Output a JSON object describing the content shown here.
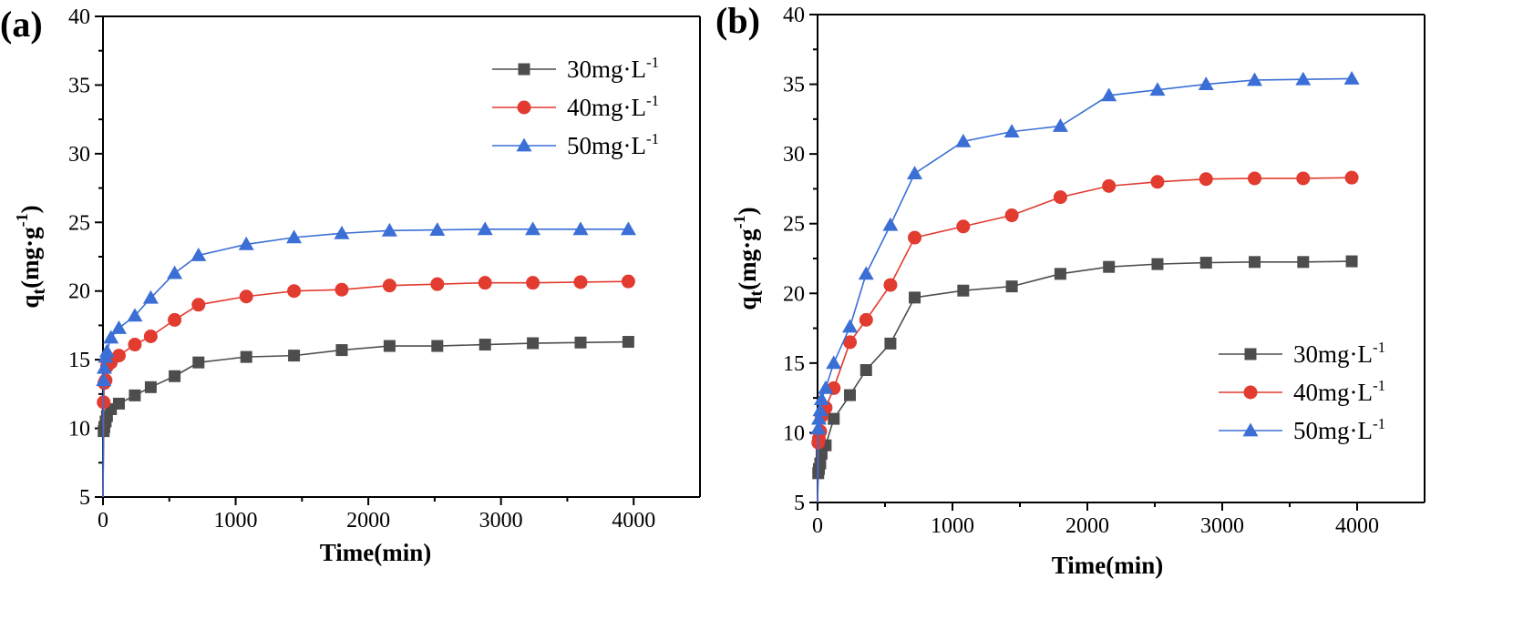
{
  "chart_data": [
    {
      "panel": "(a)",
      "type": "line",
      "xlabel": "Time(min)",
      "ylabel": "qt(mg·g-1)",
      "ylabel_parts": {
        "main": "q",
        "sub": "t",
        "unit_open": "(mg·g",
        "unit_sup": "-1",
        "unit_close": ")"
      },
      "xlim": [
        0,
        4500
      ],
      "ylim": [
        5,
        40
      ],
      "xticks": [
        0,
        1000,
        2000,
        3000,
        4000
      ],
      "yticks": [
        5,
        10,
        15,
        20,
        25,
        30,
        35,
        40
      ],
      "legend_position": "top-right",
      "series": [
        {
          "name": "30mg·L-1",
          "name_main": "30mg·L",
          "name_sup": "-1",
          "marker": "square",
          "color": "#4d4d4d",
          "x": [
            0,
            5,
            10,
            20,
            30,
            60,
            120,
            240,
            360,
            540,
            720,
            1080,
            1440,
            1800,
            2160,
            2520,
            2880,
            3240,
            3600,
            3960
          ],
          "y": [
            5,
            9.8,
            10.1,
            10.5,
            10.9,
            11.4,
            11.8,
            12.4,
            13.0,
            13.8,
            14.8,
            15.2,
            15.3,
            15.7,
            16.0,
            16.0,
            16.1,
            16.2,
            16.25,
            16.3
          ]
        },
        {
          "name": "40mg·L-1",
          "name_main": "40mg·L",
          "name_sup": "-1",
          "marker": "circle",
          "color": "#e23b2f",
          "x": [
            0,
            5,
            10,
            20,
            30,
            60,
            120,
            240,
            360,
            540,
            720,
            1080,
            1440,
            1800,
            2160,
            2520,
            2880,
            3240,
            3600,
            3960
          ],
          "y": [
            5,
            11.9,
            13.3,
            13.5,
            14.5,
            14.8,
            15.3,
            16.1,
            16.7,
            17.9,
            19.0,
            19.6,
            20.0,
            20.1,
            20.4,
            20.5,
            20.6,
            20.6,
            20.65,
            20.7
          ]
        },
        {
          "name": "50mg·L-1",
          "name_main": "50mg·L",
          "name_sup": "-1",
          "marker": "triangle",
          "color": "#3b6fd6",
          "x": [
            0,
            5,
            10,
            20,
            30,
            60,
            120,
            240,
            360,
            540,
            720,
            1080,
            1440,
            1800,
            2160,
            2520,
            2880,
            3240,
            3600,
            3960
          ],
          "y": [
            5,
            13.5,
            14.4,
            15.2,
            15.6,
            16.6,
            17.3,
            18.2,
            19.5,
            21.3,
            22.6,
            23.4,
            23.9,
            24.2,
            24.4,
            24.45,
            24.5,
            24.5,
            24.5,
            24.5
          ]
        }
      ]
    },
    {
      "panel": "(b)",
      "type": "line",
      "xlabel": "Time(min)",
      "ylabel": "qt(mg·g-1)",
      "ylabel_parts": {
        "main": "q",
        "sub": "t",
        "unit_open": "(mg·g",
        "unit_sup": "-1",
        "unit_close": ")"
      },
      "xlim": [
        0,
        4500
      ],
      "ylim": [
        5,
        40
      ],
      "xticks": [
        0,
        1000,
        2000,
        3000,
        4000
      ],
      "yticks": [
        5,
        10,
        15,
        20,
        25,
        30,
        35,
        40
      ],
      "legend_position": "bottom-right",
      "series": [
        {
          "name": "30mg·L-1",
          "name_main": "30mg·L",
          "name_sup": "-1",
          "marker": "square",
          "color": "#4d4d4d",
          "x": [
            0,
            5,
            10,
            20,
            30,
            60,
            120,
            240,
            360,
            540,
            720,
            1080,
            1440,
            1800,
            2160,
            2520,
            2880,
            3240,
            3600,
            3960
          ],
          "y": [
            5,
            7.1,
            7.4,
            7.8,
            8.5,
            9.1,
            11.0,
            12.7,
            14.5,
            16.4,
            19.7,
            20.2,
            20.5,
            21.4,
            21.9,
            22.1,
            22.2,
            22.25,
            22.25,
            22.3
          ]
        },
        {
          "name": "40mg·L-1",
          "name_main": "40mg·L",
          "name_sup": "-1",
          "marker": "circle",
          "color": "#e23b2f",
          "x": [
            0,
            5,
            10,
            20,
            30,
            60,
            120,
            240,
            360,
            540,
            720,
            1080,
            1440,
            1800,
            2160,
            2520,
            2880,
            3240,
            3600,
            3960
          ],
          "y": [
            5,
            9.3,
            9.6,
            10.1,
            11.2,
            11.8,
            13.2,
            16.5,
            18.1,
            20.6,
            24.0,
            24.8,
            25.6,
            26.9,
            27.7,
            28.0,
            28.2,
            28.25,
            28.25,
            28.3
          ]
        },
        {
          "name": "50mg·L-1",
          "name_main": "50mg·L",
          "name_sup": "-1",
          "marker": "triangle",
          "color": "#3b6fd6",
          "x": [
            0,
            5,
            10,
            20,
            30,
            60,
            120,
            240,
            360,
            540,
            720,
            1080,
            1440,
            1800,
            2160,
            2520,
            2880,
            3240,
            3600,
            3960
          ],
          "y": [
            5,
            10.3,
            11.0,
            11.6,
            12.4,
            13.2,
            15.0,
            17.6,
            21.4,
            24.9,
            28.6,
            30.9,
            31.6,
            32.0,
            34.2,
            34.6,
            35.0,
            35.3,
            35.35,
            35.4
          ]
        }
      ]
    }
  ]
}
